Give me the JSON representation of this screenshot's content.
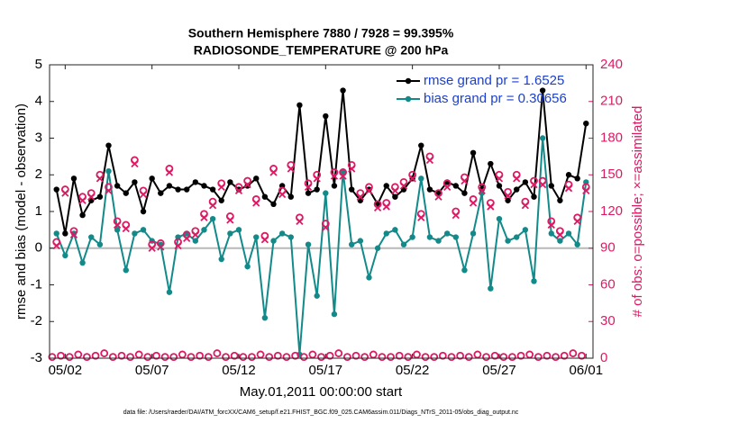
{
  "chart_data": {
    "type": "line",
    "title": "Southern Hemisphere 7880 / 7928 = 99.395%",
    "subtitle": "RADIOSONDE_TEMPERATURE @ 200 hPa",
    "ylabel": "rmse and bias (model - observation)",
    "y2label": "# of obs: o=possible; ×=assimilated",
    "xlabel": "May.01,2011 00:00:00 start",
    "footnote": "data file: /Users/raeder/DAI/ATM_forcXX/CAM6_setup/f.e21.FHIST_BGC.f09_025.CAM6assim.011/Diags_NTrS_2011-05/obs_diag_output.nc",
    "xlim": [
      0.1,
      31.4
    ],
    "xticks": [
      {
        "value": 1,
        "label": "05/02"
      },
      {
        "value": 6,
        "label": "05/07"
      },
      {
        "value": 11,
        "label": "05/12"
      },
      {
        "value": 16,
        "label": "05/17"
      },
      {
        "value": 21,
        "label": "05/22"
      },
      {
        "value": 26,
        "label": "05/27"
      },
      {
        "value": 31,
        "label": "06/01"
      }
    ],
    "ylim": [
      -3,
      5
    ],
    "yticks": [
      -3,
      -2,
      -1,
      0,
      1,
      2,
      3,
      4,
      5
    ],
    "y2lim": [
      0,
      240
    ],
    "y2ticks": [
      0,
      30,
      60,
      90,
      120,
      150,
      180,
      210,
      240
    ],
    "reference_line": 0,
    "legend": "upper right",
    "x": [
      0.5,
      1,
      1.5,
      2,
      2.5,
      3,
      3.5,
      4,
      4.5,
      5,
      5.5,
      6,
      6.5,
      7,
      7.5,
      8,
      8.5,
      9,
      9.5,
      10,
      10.5,
      11,
      11.5,
      12,
      12.5,
      13,
      13.5,
      14,
      14.5,
      15,
      15.5,
      16,
      16.5,
      17,
      17.5,
      18,
      18.5,
      19,
      19.5,
      20,
      20.5,
      21,
      21.5,
      22,
      22.5,
      23,
      23.5,
      24,
      24.5,
      25,
      25.5,
      26,
      26.5,
      27,
      27.5,
      28,
      28.5,
      29,
      29.5,
      30,
      30.5,
      31
    ],
    "series": [
      {
        "name": "rmse grand pr = 1.6525",
        "color": "#000000",
        "axis": "y",
        "marker": "dot",
        "line": true,
        "values": [
          1.6,
          0.4,
          1.9,
          0.9,
          1.3,
          1.4,
          2.8,
          1.7,
          1.5,
          1.8,
          1.0,
          1.9,
          1.5,
          1.7,
          1.6,
          1.6,
          1.8,
          1.7,
          1.6,
          1.3,
          1.8,
          1.6,
          1.7,
          1.9,
          1.4,
          1.2,
          1.7,
          1.4,
          3.9,
          1.5,
          1.6,
          3.6,
          1.7,
          4.3,
          1.6,
          1.3,
          1.6,
          1.2,
          1.7,
          1.4,
          1.6,
          1.9,
          2.8,
          1.6,
          1.5,
          1.8,
          1.7,
          1.5,
          2.6,
          1.6,
          2.3,
          1.7,
          1.3,
          1.6,
          1.8,
          1.4,
          4.3,
          1.7,
          1.3,
          2.0,
          1.9,
          3.4
        ]
      },
      {
        "name": "bias grand pr = 0.30656",
        "color": "#138a8a",
        "axis": "y",
        "marker": "dot",
        "line": true,
        "values": [
          0.4,
          -0.2,
          0.4,
          -0.4,
          0.3,
          0.1,
          2.1,
          0.5,
          -0.6,
          0.4,
          0.5,
          0.2,
          0.1,
          -1.2,
          0.3,
          0.4,
          0.2,
          0.5,
          0.8,
          -0.3,
          0.4,
          0.5,
          -0.5,
          0.3,
          -1.9,
          0.2,
          0.4,
          0.3,
          -2.9,
          0.1,
          -1.3,
          1.5,
          -1.8,
          2.1,
          0.1,
          0.2,
          -0.8,
          0.0,
          0.4,
          0.5,
          0.1,
          0.3,
          1.9,
          0.3,
          0.2,
          0.4,
          0.3,
          -0.6,
          0.4,
          1.5,
          -1.1,
          0.8,
          0.2,
          0.3,
          0.5,
          -0.9,
          3.0,
          0.4,
          0.2,
          0.4,
          0.1,
          1.8
        ]
      },
      {
        "color": "#dc1a64",
        "axis": "y2",
        "marker": "o",
        "line": false,
        "values": [
          95,
          138,
          104,
          132,
          135,
          150,
          140,
          112,
          109,
          162,
          137,
          93,
          94,
          155,
          95,
          101,
          104,
          118,
          128,
          143,
          116,
          140,
          145,
          130,
          100,
          155,
          137,
          158,
          115,
          143,
          150,
          110,
          152,
          152,
          158,
          135,
          140,
          126,
          127,
          140,
          144,
          150,
          118,
          165,
          135,
          143,
          120,
          148,
          130,
          140,
          127,
          150,
          136,
          150,
          128,
          145,
          145,
          112,
          104,
          142,
          115,
          140
        ]
      },
      {
        "color": "#dc1a64",
        "axis": "y2",
        "marker": "x",
        "line": false,
        "values": [
          92,
          135,
          101,
          129,
          132,
          147,
          137,
          109,
          106,
          159,
          134,
          90,
          91,
          152,
          92,
          98,
          101,
          115,
          125,
          140,
          113,
          137,
          142,
          127,
          97,
          152,
          134,
          155,
          112,
          140,
          147,
          107,
          149,
          149,
          155,
          132,
          137,
          123,
          124,
          137,
          141,
          147,
          115,
          162,
          132,
          140,
          117,
          145,
          127,
          137,
          124,
          147,
          133,
          147,
          125,
          142,
          142,
          109,
          101,
          139,
          112,
          137
        ]
      },
      {
        "color": "#dc1a64",
        "axis": "y2",
        "marker": "o",
        "line": false,
        "x": [
          0.25,
          0.75,
          1.25,
          1.75,
          2.25,
          2.75,
          3.25,
          3.75,
          4.25,
          4.75,
          5.25,
          5.75,
          6.25,
          6.75,
          7.25,
          7.75,
          8.25,
          8.75,
          9.25,
          9.75,
          10.25,
          10.75,
          11.25,
          11.75,
          12.25,
          12.75,
          13.25,
          13.75,
          14.25,
          14.75,
          15.25,
          15.75,
          16.25,
          16.75,
          17.25,
          17.75,
          18.25,
          18.75,
          19.25,
          19.75,
          20.25,
          20.75,
          21.25,
          21.75,
          22.25,
          22.75,
          23.25,
          23.75,
          24.25,
          24.75,
          25.25,
          25.75,
          26.25,
          26.75,
          27.25,
          27.75,
          28.25,
          28.75,
          29.25,
          29.75,
          30.25,
          30.75
        ],
        "values": [
          1,
          2,
          1,
          3,
          1,
          2,
          4,
          1,
          2,
          1,
          3,
          1,
          2,
          1,
          1,
          3,
          1,
          2,
          1,
          4,
          1,
          2,
          1,
          1,
          3,
          1,
          2,
          1,
          2,
          1,
          3,
          1,
          2,
          4,
          1,
          2,
          1,
          3,
          1,
          1,
          2,
          1,
          3,
          1,
          1,
          2,
          1,
          2,
          1,
          3,
          1,
          2,
          1,
          1,
          2,
          3,
          1,
          2,
          1,
          2,
          4,
          2
        ]
      }
    ]
  }
}
